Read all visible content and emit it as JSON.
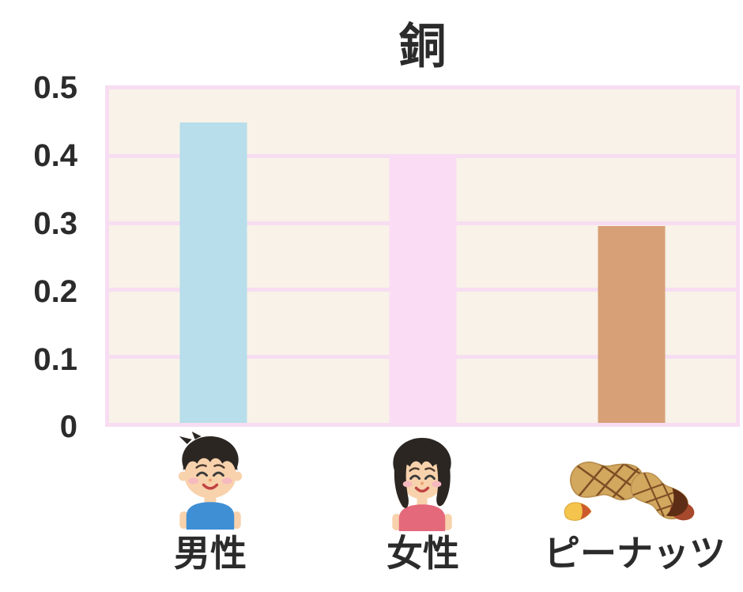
{
  "chart_data": {
    "type": "bar",
    "title": "銅",
    "categories": [
      "男性",
      "女性",
      "ピーナッツ"
    ],
    "values": [
      0.45,
      0.4,
      0.295
    ],
    "bar_colors": [
      "#b7deea",
      "#fbdcf5",
      "#d7a076"
    ],
    "category_icons": [
      "boy-face",
      "girl-face",
      "peanuts"
    ],
    "xlabel": "",
    "ylabel": "",
    "ylim": [
      0,
      0.5
    ],
    "ytick_labels": [
      "0.5",
      "0.4",
      "0.3",
      "0.2",
      "0.1",
      "0"
    ],
    "grid": true,
    "legend": "none",
    "colors": {
      "plot_background": "#f8f2e8",
      "grid_and_border": "#f7ddf2",
      "text": "#2b2b2b",
      "page_background": "#ffffff"
    }
  }
}
